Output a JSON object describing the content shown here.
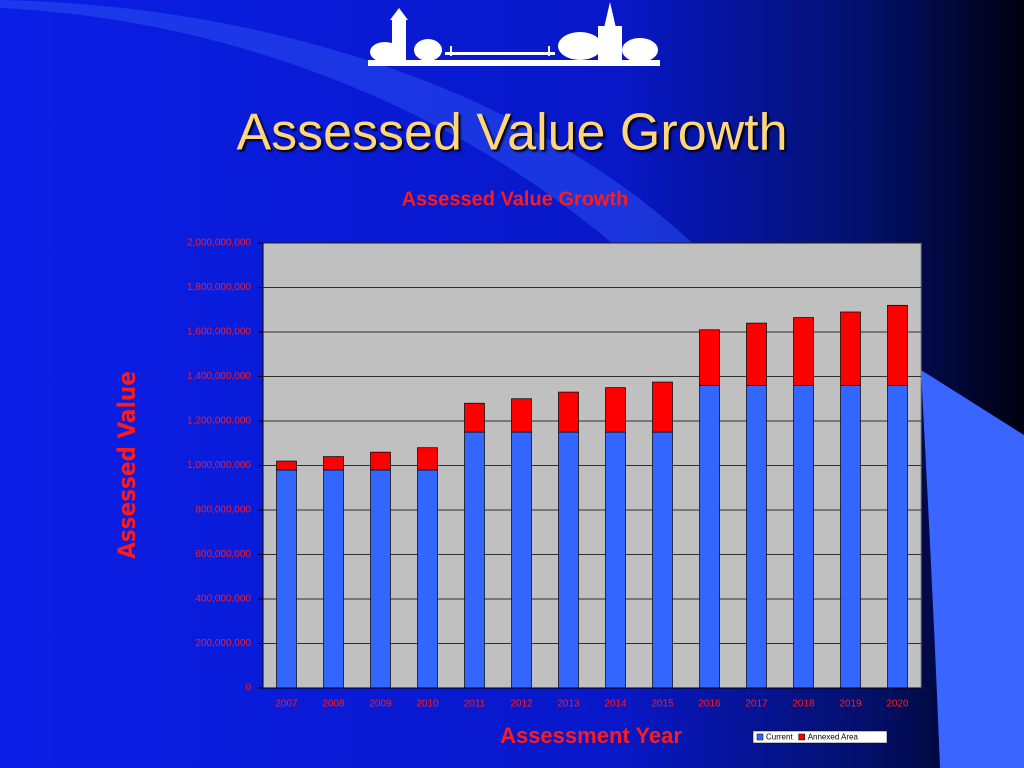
{
  "slide": {
    "title": "Assessed Value Growth"
  },
  "chart_data": {
    "type": "bar",
    "stacked": true,
    "title": "Assessed Value Growth",
    "x_label": "Assessment Year",
    "y_label": "Assessed Value",
    "categories": [
      "2007",
      "2008",
      "2009",
      "2010",
      "2011",
      "2012",
      "2013",
      "2014",
      "2015",
      "2016",
      "2017",
      "2018",
      "2019",
      "2020"
    ],
    "series": [
      {
        "name": "Current",
        "color": "#3366ff",
        "values": [
          980000000,
          980000000,
          980000000,
          980000000,
          1150000000,
          1150000000,
          1150000000,
          1150000000,
          1150000000,
          1360000000,
          1360000000,
          1360000000,
          1360000000,
          1360000000
        ]
      },
      {
        "name": "Annexed Area",
        "color": "#ff0000",
        "values": [
          40000000,
          60000000,
          80000000,
          100000000,
          130000000,
          150000000,
          180000000,
          200000000,
          225000000,
          250000000,
          280000000,
          305000000,
          330000000,
          360000000
        ]
      }
    ],
    "ylim": [
      0,
      2000000000
    ],
    "yticks": [
      0,
      {
        "value": 200000000,
        "label": "200,000,000"
      },
      {
        "value": 400000000,
        "label": "400,000,000"
      },
      {
        "value": 600000000,
        "label": "600,000,000"
      },
      {
        "value": 800000000,
        "label": "800,000,000"
      },
      {
        "value": 1000000000,
        "label": "1,000,000,000"
      },
      {
        "value": 1200000000,
        "label": "1,200,000,000"
      },
      {
        "value": 1400000000,
        "label": "1,400,000,000"
      },
      {
        "value": 1600000000,
        "label": "1,600,000,000"
      },
      {
        "value": 1800000000,
        "label": "1,800,000,000"
      },
      {
        "value": 2000000000,
        "label": "2,000,000,000"
      }
    ],
    "grid": true,
    "legend": "bottom-right"
  }
}
